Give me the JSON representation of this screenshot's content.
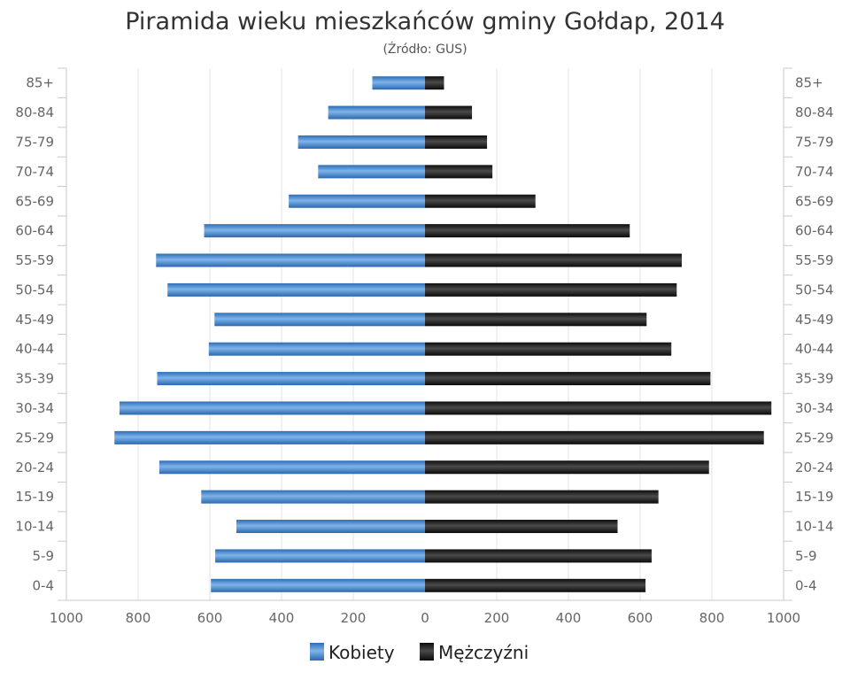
{
  "chart_data": {
    "type": "bar",
    "orientation": "horizontal",
    "title": "Piramida wieku mieszkańców gminy Gołdap, 2014",
    "subtitle": "(Źródło: GUS)",
    "categories": [
      "85+",
      "80-84",
      "75-79",
      "70-74",
      "65-69",
      "60-64",
      "55-59",
      "50-54",
      "45-49",
      "40-44",
      "35-39",
      "30-34",
      "25-29",
      "20-24",
      "15-19",
      "10-14",
      "5-9",
      "0-4"
    ],
    "series": [
      {
        "name": "Kobiety",
        "color": "#4a8cd0",
        "values": [
          147,
          270,
          354,
          298,
          380,
          616,
          750,
          718,
          587,
          603,
          747,
          852,
          866,
          741,
          624,
          526,
          585,
          597
        ]
      },
      {
        "name": "Mężczyźni",
        "color": "#222222",
        "values": [
          53,
          131,
          173,
          188,
          308,
          571,
          716,
          702,
          618,
          687,
          796,
          966,
          945,
          792,
          651,
          537,
          632,
          615
        ]
      }
    ],
    "xlim": [
      -1000,
      1000
    ],
    "x_ticks": [
      -1000,
      -800,
      -600,
      -400,
      -200,
      0,
      200,
      400,
      600,
      800,
      1000
    ],
    "x_tick_labels": [
      "1000",
      "800",
      "600",
      "400",
      "200",
      "0",
      "200",
      "400",
      "600",
      "800",
      "1000"
    ],
    "grid": true,
    "legend_position": "bottom"
  }
}
